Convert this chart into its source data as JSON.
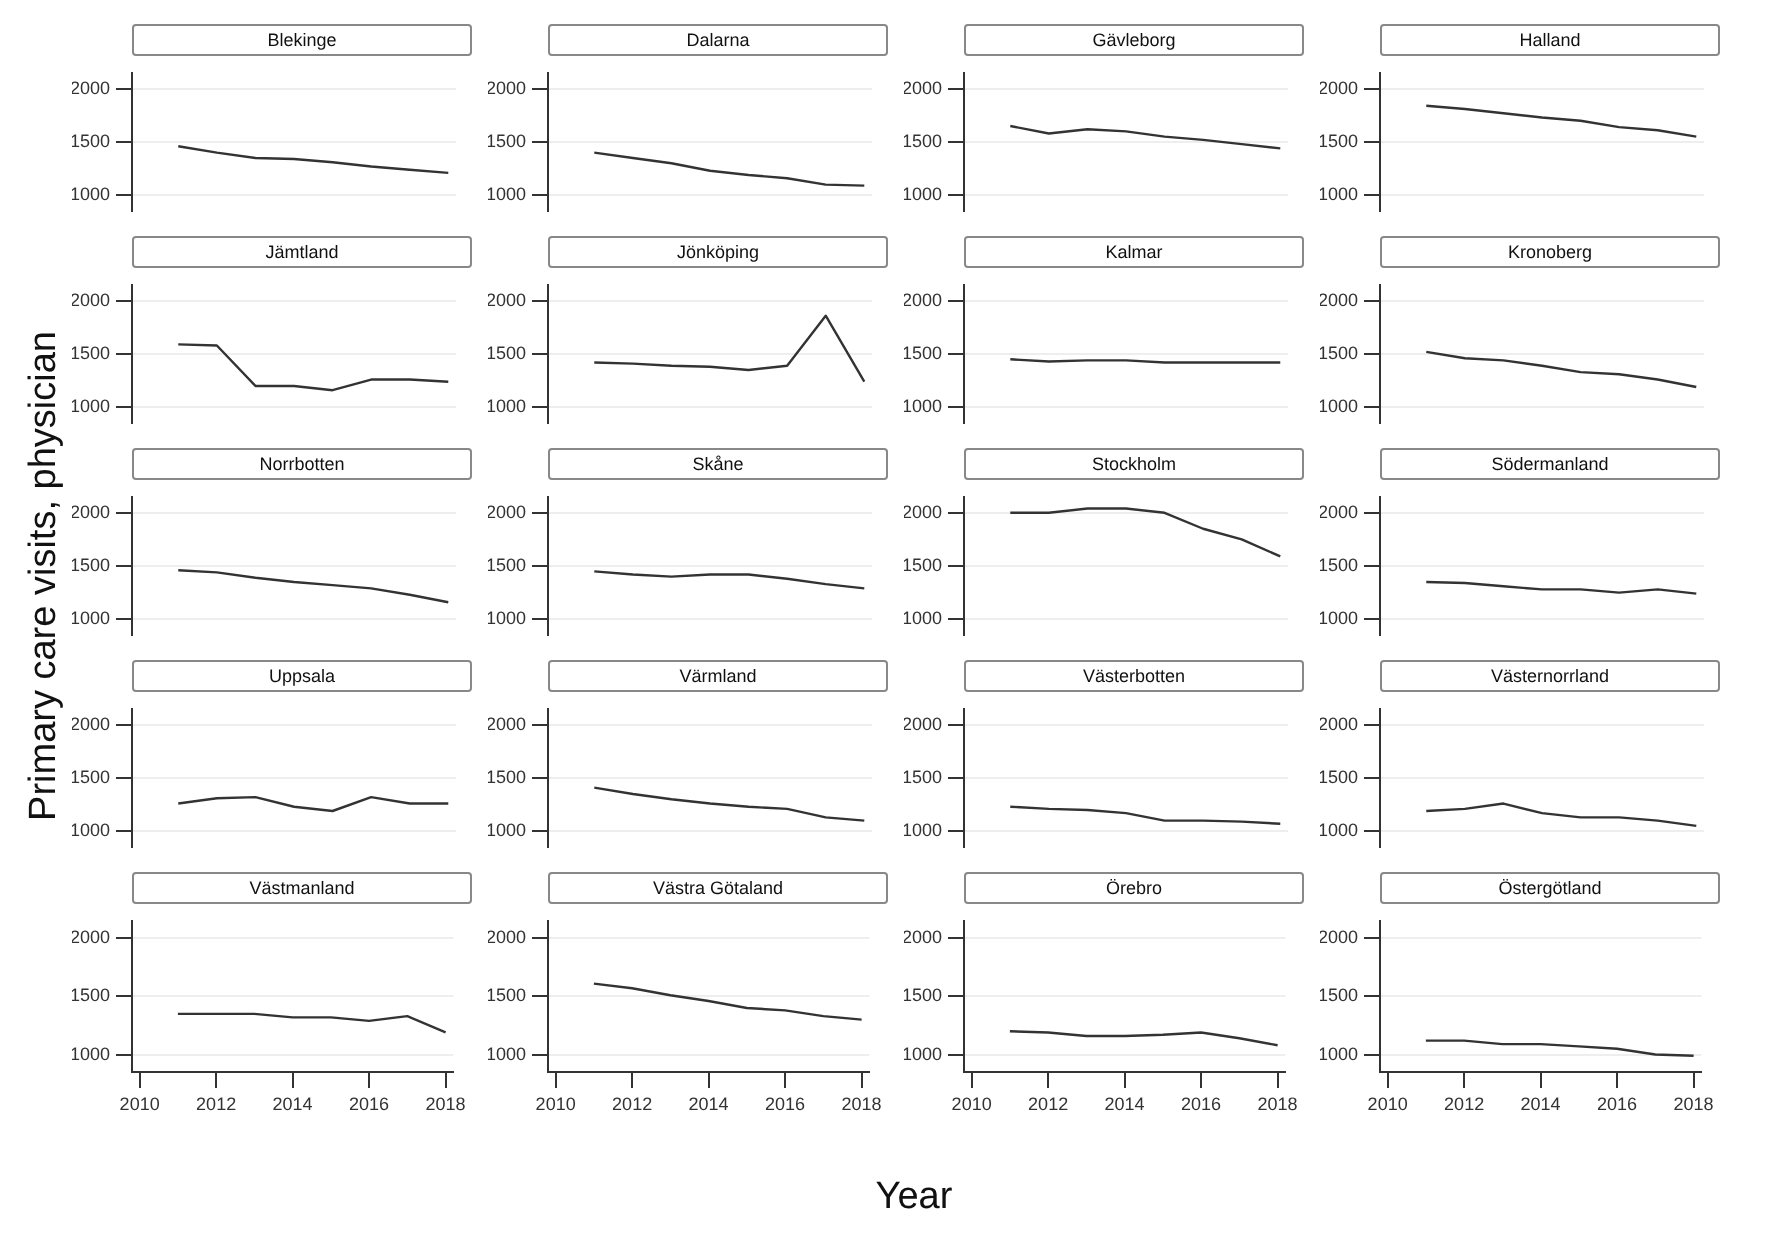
{
  "chart_data": [
    {
      "type": "line",
      "title": "Blekinge",
      "x": [
        2011,
        2012,
        2013,
        2014,
        2015,
        2016,
        2017,
        2018
      ],
      "values": [
        1460,
        1400,
        1350,
        1340,
        1310,
        1270,
        1240,
        1210
      ],
      "color": "#333333",
      "xlim": [
        2009.8,
        2018.2
      ],
      "xticks": [
        2010,
        2012,
        2014,
        2016,
        2018
      ],
      "ylim": [
        850,
        2150
      ],
      "yticks": [
        1000,
        1500,
        2000
      ],
      "grid": "y",
      "tick_labels": "y"
    },
    {
      "type": "line",
      "title": "Dalarna",
      "x": [
        2011,
        2012,
        2013,
        2014,
        2015,
        2016,
        2017,
        2018
      ],
      "values": [
        1400,
        1350,
        1300,
        1230,
        1190,
        1160,
        1100,
        1090
      ],
      "color": "#333333",
      "xlim": [
        2009.8,
        2018.2
      ],
      "xticks": [
        2010,
        2012,
        2014,
        2016,
        2018
      ],
      "ylim": [
        850,
        2150
      ],
      "yticks": [
        1000,
        1500,
        2000
      ],
      "grid": "y",
      "tick_labels": "y"
    },
    {
      "type": "line",
      "title": "Gävleborg",
      "x": [
        2011,
        2012,
        2013,
        2014,
        2015,
        2016,
        2017,
        2018
      ],
      "values": [
        1650,
        1580,
        1620,
        1600,
        1550,
        1520,
        1480,
        1440
      ],
      "color": "#333333",
      "xlim": [
        2009.8,
        2018.2
      ],
      "xticks": [
        2010,
        2012,
        2014,
        2016,
        2018
      ],
      "ylim": [
        850,
        2150
      ],
      "yticks": [
        1000,
        1500,
        2000
      ],
      "grid": "y",
      "tick_labels": "y"
    },
    {
      "type": "line",
      "title": "Halland",
      "x": [
        2011,
        2012,
        2013,
        2014,
        2015,
        2016,
        2017,
        2018
      ],
      "values": [
        1840,
        1810,
        1770,
        1730,
        1700,
        1640,
        1610,
        1550
      ],
      "color": "#333333",
      "xlim": [
        2009.8,
        2018.2
      ],
      "xticks": [
        2010,
        2012,
        2014,
        2016,
        2018
      ],
      "ylim": [
        850,
        2150
      ],
      "yticks": [
        1000,
        1500,
        2000
      ],
      "grid": "y",
      "tick_labels": "y"
    },
    {
      "type": "line",
      "title": "Jämtland",
      "x": [
        2011,
        2012,
        2013,
        2014,
        2015,
        2016,
        2017,
        2018
      ],
      "values": [
        1590,
        1580,
        1200,
        1200,
        1160,
        1260,
        1260,
        1240
      ],
      "color": "#333333",
      "xlim": [
        2009.8,
        2018.2
      ],
      "xticks": [
        2010,
        2012,
        2014,
        2016,
        2018
      ],
      "ylim": [
        850,
        2150
      ],
      "yticks": [
        1000,
        1500,
        2000
      ],
      "grid": "y",
      "tick_labels": "y"
    },
    {
      "type": "line",
      "title": "Jönköping",
      "x": [
        2011,
        2012,
        2013,
        2014,
        2015,
        2016,
        2017,
        2018
      ],
      "values": [
        1420,
        1410,
        1390,
        1380,
        1350,
        1390,
        1860,
        1240
      ],
      "color": "#333333",
      "xlim": [
        2009.8,
        2018.2
      ],
      "xticks": [
        2010,
        2012,
        2014,
        2016,
        2018
      ],
      "ylim": [
        850,
        2150
      ],
      "yticks": [
        1000,
        1500,
        2000
      ],
      "grid": "y",
      "tick_labels": "y"
    },
    {
      "type": "line",
      "title": "Kalmar",
      "x": [
        2011,
        2012,
        2013,
        2014,
        2015,
        2016,
        2017,
        2018
      ],
      "values": [
        1450,
        1430,
        1440,
        1440,
        1420,
        1420,
        1420,
        1420
      ],
      "color": "#333333",
      "xlim": [
        2009.8,
        2018.2
      ],
      "xticks": [
        2010,
        2012,
        2014,
        2016,
        2018
      ],
      "ylim": [
        850,
        2150
      ],
      "yticks": [
        1000,
        1500,
        2000
      ],
      "grid": "y",
      "tick_labels": "y"
    },
    {
      "type": "line",
      "title": "Kronoberg",
      "x": [
        2011,
        2012,
        2013,
        2014,
        2015,
        2016,
        2017,
        2018
      ],
      "values": [
        1520,
        1460,
        1440,
        1390,
        1330,
        1310,
        1260,
        1190
      ],
      "color": "#333333",
      "xlim": [
        2009.8,
        2018.2
      ],
      "xticks": [
        2010,
        2012,
        2014,
        2016,
        2018
      ],
      "ylim": [
        850,
        2150
      ],
      "yticks": [
        1000,
        1500,
        2000
      ],
      "grid": "y",
      "tick_labels": "y"
    },
    {
      "type": "line",
      "title": "Norrbotten",
      "ylabel": "Primary care visits, physician",
      "x": [
        2011,
        2012,
        2013,
        2014,
        2015,
        2016,
        2017,
        2018
      ],
      "values": [
        1460,
        1440,
        1390,
        1350,
        1320,
        1290,
        1230,
        1160
      ],
      "color": "#333333",
      "xlim": [
        2009.8,
        2018.2
      ],
      "xticks": [
        2010,
        2012,
        2014,
        2016,
        2018
      ],
      "ylim": [
        850,
        2150
      ],
      "yticks": [
        1000,
        1500,
        2000
      ],
      "grid": "y",
      "tick_labels": "y"
    },
    {
      "type": "line",
      "title": "Skåne",
      "x": [
        2011,
        2012,
        2013,
        2014,
        2015,
        2016,
        2017,
        2018
      ],
      "values": [
        1450,
        1420,
        1400,
        1420,
        1420,
        1380,
        1330,
        1290
      ],
      "color": "#333333",
      "xlim": [
        2009.8,
        2018.2
      ],
      "xticks": [
        2010,
        2012,
        2014,
        2016,
        2018
      ],
      "ylim": [
        850,
        2150
      ],
      "yticks": [
        1000,
        1500,
        2000
      ],
      "grid": "y",
      "tick_labels": "y"
    },
    {
      "type": "line",
      "title": "Stockholm",
      "x": [
        2011,
        2012,
        2013,
        2014,
        2015,
        2016,
        2017,
        2018
      ],
      "values": [
        2000,
        2000,
        2040,
        2040,
        2000,
        1850,
        1750,
        1590
      ],
      "color": "#333333",
      "xlim": [
        2009.8,
        2018.2
      ],
      "xticks": [
        2010,
        2012,
        2014,
        2016,
        2018
      ],
      "ylim": [
        850,
        2150
      ],
      "yticks": [
        1000,
        1500,
        2000
      ],
      "grid": "y",
      "tick_labels": "y"
    },
    {
      "type": "line",
      "title": "Södermanland",
      "x": [
        2011,
        2012,
        2013,
        2014,
        2015,
        2016,
        2017,
        2018
      ],
      "values": [
        1350,
        1340,
        1310,
        1280,
        1280,
        1250,
        1280,
        1240
      ],
      "color": "#333333",
      "xlim": [
        2009.8,
        2018.2
      ],
      "xticks": [
        2010,
        2012,
        2014,
        2016,
        2018
      ],
      "ylim": [
        850,
        2150
      ],
      "yticks": [
        1000,
        1500,
        2000
      ],
      "grid": "y",
      "tick_labels": "y"
    },
    {
      "type": "line",
      "title": "Uppsala",
      "x": [
        2011,
        2012,
        2013,
        2014,
        2015,
        2016,
        2017,
        2018
      ],
      "values": [
        1260,
        1310,
        1320,
        1230,
        1190,
        1320,
        1260,
        1260
      ],
      "color": "#333333",
      "xlim": [
        2009.8,
        2018.2
      ],
      "xticks": [
        2010,
        2012,
        2014,
        2016,
        2018
      ],
      "ylim": [
        850,
        2150
      ],
      "yticks": [
        1000,
        1500,
        2000
      ],
      "grid": "y",
      "tick_labels": "y"
    },
    {
      "type": "line",
      "title": "Värmland",
      "x": [
        2011,
        2012,
        2013,
        2014,
        2015,
        2016,
        2017,
        2018
      ],
      "values": [
        1410,
        1350,
        1300,
        1260,
        1230,
        1210,
        1130,
        1100
      ],
      "color": "#333333",
      "xlim": [
        2009.8,
        2018.2
      ],
      "xticks": [
        2010,
        2012,
        2014,
        2016,
        2018
      ],
      "ylim": [
        850,
        2150
      ],
      "yticks": [
        1000,
        1500,
        2000
      ],
      "grid": "y",
      "tick_labels": "y"
    },
    {
      "type": "line",
      "title": "Västerbotten",
      "x": [
        2011,
        2012,
        2013,
        2014,
        2015,
        2016,
        2017,
        2018
      ],
      "values": [
        1230,
        1210,
        1200,
        1170,
        1100,
        1100,
        1090,
        1070
      ],
      "color": "#333333",
      "xlim": [
        2009.8,
        2018.2
      ],
      "xticks": [
        2010,
        2012,
        2014,
        2016,
        2018
      ],
      "ylim": [
        850,
        2150
      ],
      "yticks": [
        1000,
        1500,
        2000
      ],
      "grid": "y",
      "tick_labels": "y"
    },
    {
      "type": "line",
      "title": "Västernorrland",
      "x": [
        2011,
        2012,
        2013,
        2014,
        2015,
        2016,
        2017,
        2018
      ],
      "values": [
        1190,
        1210,
        1260,
        1170,
        1130,
        1130,
        1100,
        1050
      ],
      "color": "#333333",
      "xlim": [
        2009.8,
        2018.2
      ],
      "xticks": [
        2010,
        2012,
        2014,
        2016,
        2018
      ],
      "ylim": [
        850,
        2150
      ],
      "yticks": [
        1000,
        1500,
        2000
      ],
      "grid": "y",
      "tick_labels": "y"
    },
    {
      "type": "line",
      "title": "Västmanland",
      "x": [
        2011,
        2012,
        2013,
        2014,
        2015,
        2016,
        2017,
        2018
      ],
      "values": [
        1350,
        1350,
        1350,
        1320,
        1320,
        1290,
        1330,
        1190
      ],
      "color": "#333333",
      "xlim": [
        2009.8,
        2018.2
      ],
      "xticks": [
        2010,
        2012,
        2014,
        2016,
        2018
      ],
      "ylim": [
        850,
        2150
      ],
      "yticks": [
        1000,
        1500,
        2000
      ],
      "grid": "y"
    },
    {
      "type": "line",
      "title": "Västra Götaland",
      "xlabel": "Year",
      "x": [
        2011,
        2012,
        2013,
        2014,
        2015,
        2016,
        2017,
        2018
      ],
      "values": [
        1610,
        1570,
        1510,
        1460,
        1400,
        1380,
        1330,
        1300
      ],
      "color": "#333333",
      "xlim": [
        2009.8,
        2018.2
      ],
      "xticks": [
        2010,
        2012,
        2014,
        2016,
        2018
      ],
      "ylim": [
        850,
        2150
      ],
      "yticks": [
        1000,
        1500,
        2000
      ],
      "grid": "y"
    },
    {
      "type": "line",
      "title": "Örebro",
      "x": [
        2011,
        2012,
        2013,
        2014,
        2015,
        2016,
        2017,
        2018
      ],
      "values": [
        1200,
        1190,
        1160,
        1160,
        1170,
        1190,
        1140,
        1080
      ],
      "color": "#333333",
      "xlim": [
        2009.8,
        2018.2
      ],
      "xticks": [
        2010,
        2012,
        2014,
        2016,
        2018
      ],
      "ylim": [
        850,
        2150
      ],
      "yticks": [
        1000,
        1500,
        2000
      ],
      "grid": "y"
    },
    {
      "type": "line",
      "title": "Östergötland",
      "x": [
        2011,
        2012,
        2013,
        2014,
        2015,
        2016,
        2017,
        2018
      ],
      "values": [
        1120,
        1120,
        1090,
        1090,
        1070,
        1050,
        1000,
        990
      ],
      "color": "#333333",
      "xlim": [
        2009.8,
        2018.2
      ],
      "xticks": [
        2010,
        2012,
        2014,
        2016,
        2018
      ],
      "ylim": [
        850,
        2150
      ],
      "yticks": [
        1000,
        1500,
        2000
      ],
      "grid": "y"
    }
  ]
}
